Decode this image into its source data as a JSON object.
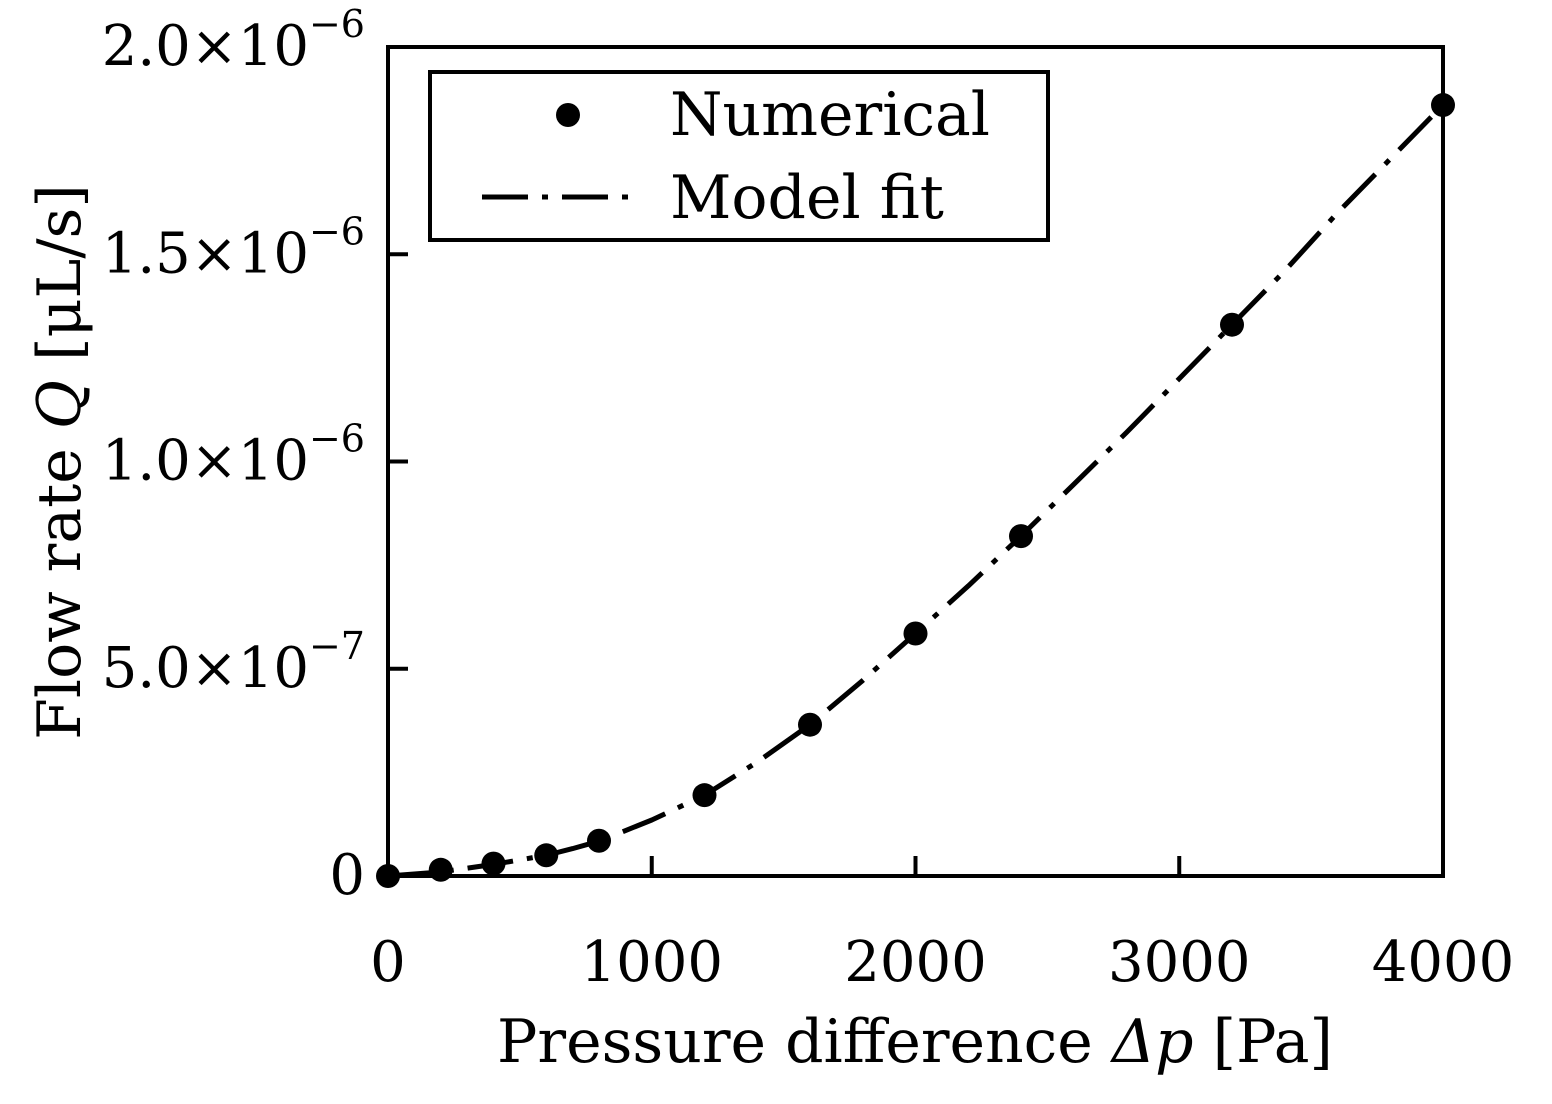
{
  "chart_data": {
    "type": "scatter",
    "title": "",
    "xlabel": {
      "text": "Pressure difference ",
      "symbol": "Δp",
      "unit": " [Pa]"
    },
    "ylabel": {
      "text": "Flow rate ",
      "symbol": "Q",
      "unit": " [μL/s]"
    },
    "xlim": [
      0,
      4000
    ],
    "ylim": [
      0,
      2e-06
    ],
    "x_ticks": [
      {
        "value": 0,
        "label": "0"
      },
      {
        "value": 1000,
        "label": "1000"
      },
      {
        "value": 2000,
        "label": "2000"
      },
      {
        "value": 3000,
        "label": "3000"
      },
      {
        "value": 4000,
        "label": "4000"
      }
    ],
    "y_ticks": [
      {
        "value": 0,
        "mantissa": "0",
        "exponent": ""
      },
      {
        "value": 5e-07,
        "mantissa": "5.0×10",
        "exponent": "−7"
      },
      {
        "value": 1e-06,
        "mantissa": "1.0×10",
        "exponent": "−6"
      },
      {
        "value": 1.5e-06,
        "mantissa": "1.5×10",
        "exponent": "−6"
      },
      {
        "value": 2e-06,
        "mantissa": "2.0×10",
        "exponent": "−6"
      }
    ],
    "grid": false,
    "legend": {
      "position": "top-left",
      "entries": [
        "Numerical",
        "Model fit"
      ]
    },
    "series": [
      {
        "name": "Numerical",
        "style": "markers",
        "color": "#000000",
        "x": [
          0,
          200,
          400,
          600,
          800,
          1200,
          1600,
          2000,
          2400,
          3200,
          4000
        ],
        "y": [
          0,
          1.5e-08,
          3e-08,
          5e-08,
          8.5e-08,
          1.95e-07,
          3.65e-07,
          5.85e-07,
          8.2e-07,
          1.33e-06,
          1.86e-06
        ]
      },
      {
        "name": "Model fit",
        "style": "dash-dot",
        "color": "#000000",
        "x": [
          0,
          200,
          400,
          600,
          700,
          800,
          1000,
          1200,
          1400,
          1600,
          1800,
          2000,
          2200,
          2400,
          2600,
          2800,
          3000,
          3200,
          3400,
          3600,
          3800,
          4000
        ],
        "y": [
          0,
          1e-08,
          2.8e-08,
          5e-08,
          6.6e-08,
          8.4e-08,
          1.35e-07,
          1.95e-07,
          2.75e-07,
          3.65e-07,
          4.72e-07,
          5.85e-07,
          7e-07,
          8.2e-07,
          9.45e-07,
          1.07e-06,
          1.2e-06,
          1.33e-06,
          1.46e-06,
          1.6e-06,
          1.73e-06,
          1.86e-06
        ]
      }
    ]
  }
}
